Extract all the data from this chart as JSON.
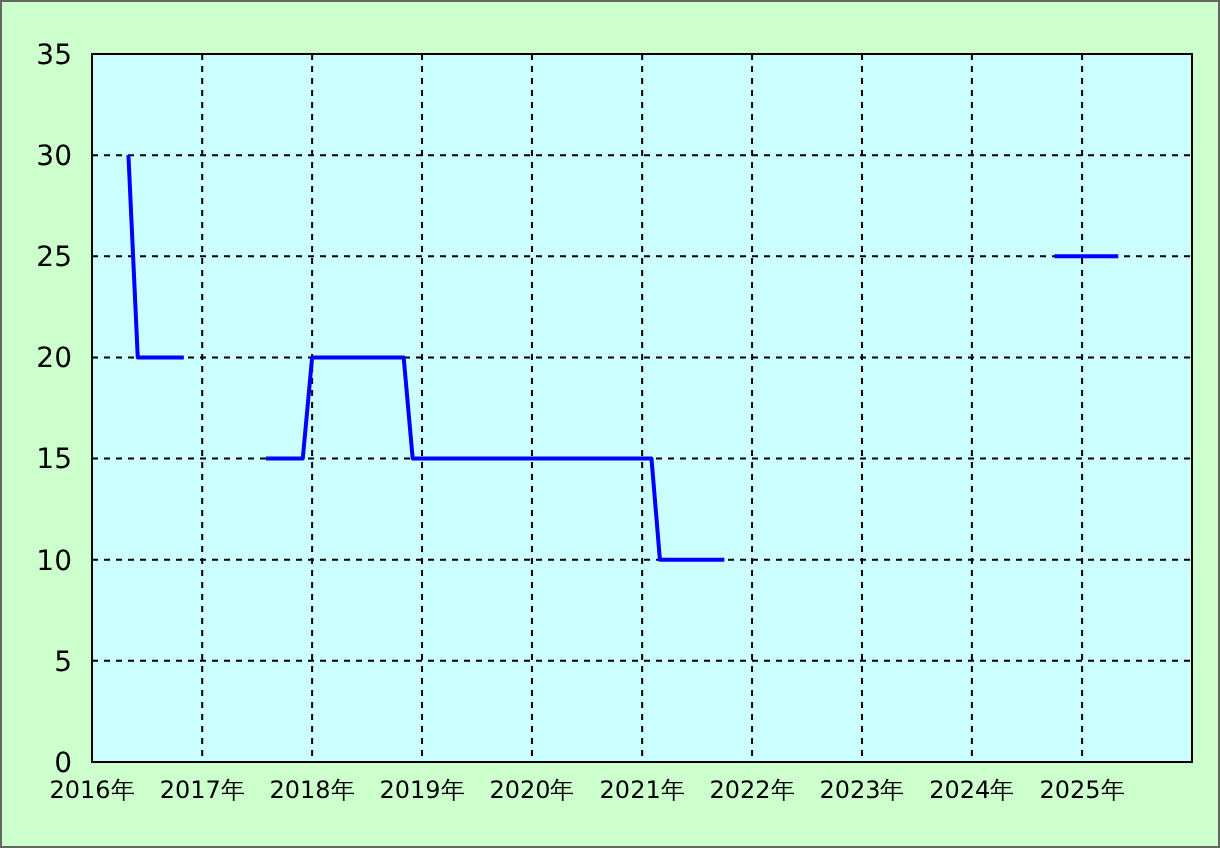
{
  "chart_data": {
    "type": "line",
    "x": [
      "2016-05",
      "2016-06",
      "2016-11",
      "2017-05",
      "2017-08",
      "2017-12",
      "2018-01",
      "2018-11",
      "2018-12",
      "2021-02",
      "2021-03",
      "2021-10",
      "2023-01",
      "2024-10",
      "2025-05"
    ],
    "series": [
      {
        "color": "#0000ff",
        "values": [
          30,
          20,
          20,
          null,
          15,
          15,
          20,
          20,
          15,
          15,
          10,
          10,
          null,
          25,
          25
        ]
      }
    ],
    "xlim": [
      "2016",
      "2026"
    ],
    "xticks": [
      {
        "value": "2016",
        "label": "2016年"
      },
      {
        "value": "2017",
        "label": "2017年"
      },
      {
        "value": "2018",
        "label": "2018年"
      },
      {
        "value": "2019",
        "label": "2019年"
      },
      {
        "value": "2020",
        "label": "2020年"
      },
      {
        "value": "2021",
        "label": "2021年"
      },
      {
        "value": "2022",
        "label": "2022年"
      },
      {
        "value": "2023",
        "label": "2023年"
      },
      {
        "value": "2024",
        "label": "2024年"
      },
      {
        "value": "2025",
        "label": "2025年"
      },
      {
        "value": "2026",
        "label": null
      }
    ],
    "ylim": [
      0,
      35
    ],
    "yticks": [
      0,
      5,
      10,
      15,
      20,
      25,
      30,
      35
    ],
    "grid": true,
    "line_style": "solid",
    "marker": "none"
  }
}
